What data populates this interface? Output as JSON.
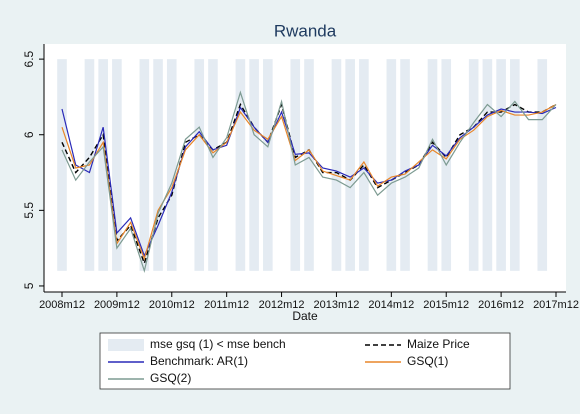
{
  "chart_data": {
    "type": "line",
    "title": "Rwanda",
    "x_label": "Date",
    "x": [
      "2008m12",
      "2009m3",
      "2009m6",
      "2009m9",
      "2009m12",
      "2010m3",
      "2010m6",
      "2010m9",
      "2010m12",
      "2011m3",
      "2011m6",
      "2011m9",
      "2011m12",
      "2012m3",
      "2012m6",
      "2012m9",
      "2012m12",
      "2013m3",
      "2013m6",
      "2013m9",
      "2013m12",
      "2014m3",
      "2014m6",
      "2014m9",
      "2014m12",
      "2015m3",
      "2015m6",
      "2015m9",
      "2015m12",
      "2016m3",
      "2016m6",
      "2016m9",
      "2016m12",
      "2017m3",
      "2017m6",
      "2017m9",
      "2017m12"
    ],
    "xticks": [
      "2008m12",
      "2009m12",
      "2010m12",
      "2011m12",
      "2012m12",
      "2013m12",
      "2014m12",
      "2015m12",
      "2016m12",
      "2017m12"
    ],
    "ylim": [
      4.96,
      6.6
    ],
    "yticks": [
      5,
      5.5,
      6,
      6.5
    ],
    "shade_range": [
      5.1,
      6.5
    ],
    "series": [
      {
        "name": "mse gsq (1) < mse bench",
        "color": "#e4ebf2",
        "kind": "shade",
        "values": [
          1,
          0,
          1,
          1,
          1,
          0,
          1,
          1,
          1,
          0,
          1,
          1,
          0,
          1,
          1,
          1,
          0,
          1,
          1,
          0,
          1,
          1,
          1,
          0,
          1,
          1,
          0,
          1,
          1,
          0,
          1,
          1,
          1,
          1,
          0,
          1,
          0
        ]
      },
      {
        "name": "Maize Price",
        "color": "#000000",
        "kind": "dashed",
        "values": [
          5.95,
          5.75,
          5.85,
          6.0,
          5.3,
          5.4,
          5.15,
          5.45,
          5.6,
          5.95,
          6.0,
          5.9,
          5.95,
          6.2,
          6.05,
          5.95,
          6.2,
          5.85,
          5.9,
          5.75,
          5.75,
          5.7,
          5.8,
          5.65,
          5.7,
          5.75,
          5.8,
          5.95,
          5.85,
          6.0,
          6.05,
          6.15,
          6.15,
          6.2,
          6.15,
          6.15,
          6.2
        ]
      },
      {
        "name": "Benchmark: AR(1)",
        "color": "#2a2ab8",
        "kind": "solid",
        "values": [
          6.17,
          5.8,
          5.75,
          6.05,
          5.35,
          5.45,
          5.2,
          5.4,
          5.62,
          5.92,
          6.02,
          5.9,
          5.93,
          6.18,
          6.05,
          5.95,
          6.15,
          5.87,
          5.88,
          5.78,
          5.76,
          5.72,
          5.78,
          5.68,
          5.7,
          5.76,
          5.8,
          5.93,
          5.86,
          5.98,
          6.05,
          6.13,
          6.17,
          6.15,
          6.15,
          6.14,
          6.18
        ]
      },
      {
        "name": "GSQ(1)",
        "color": "#e8862a",
        "kind": "solid",
        "values": [
          6.05,
          5.78,
          5.8,
          5.95,
          5.28,
          5.42,
          5.18,
          5.5,
          5.65,
          5.9,
          6.0,
          5.88,
          5.95,
          6.15,
          6.03,
          5.97,
          6.12,
          5.83,
          5.9,
          5.76,
          5.73,
          5.7,
          5.82,
          5.66,
          5.72,
          5.74,
          5.82,
          5.9,
          5.84,
          5.97,
          6.03,
          6.12,
          6.16,
          6.13,
          6.13,
          6.15,
          6.2
        ]
      },
      {
        "name": "GSQ(2)",
        "color": "#7d9b92",
        "kind": "solid",
        "values": [
          5.9,
          5.7,
          5.82,
          5.92,
          5.25,
          5.38,
          5.1,
          5.48,
          5.68,
          5.97,
          6.05,
          5.85,
          5.98,
          6.28,
          6.0,
          5.92,
          6.22,
          5.8,
          5.85,
          5.72,
          5.7,
          5.65,
          5.75,
          5.6,
          5.68,
          5.72,
          5.78,
          5.97,
          5.8,
          5.95,
          6.08,
          6.2,
          6.12,
          6.22,
          6.1,
          6.1,
          6.2
        ]
      }
    ]
  }
}
